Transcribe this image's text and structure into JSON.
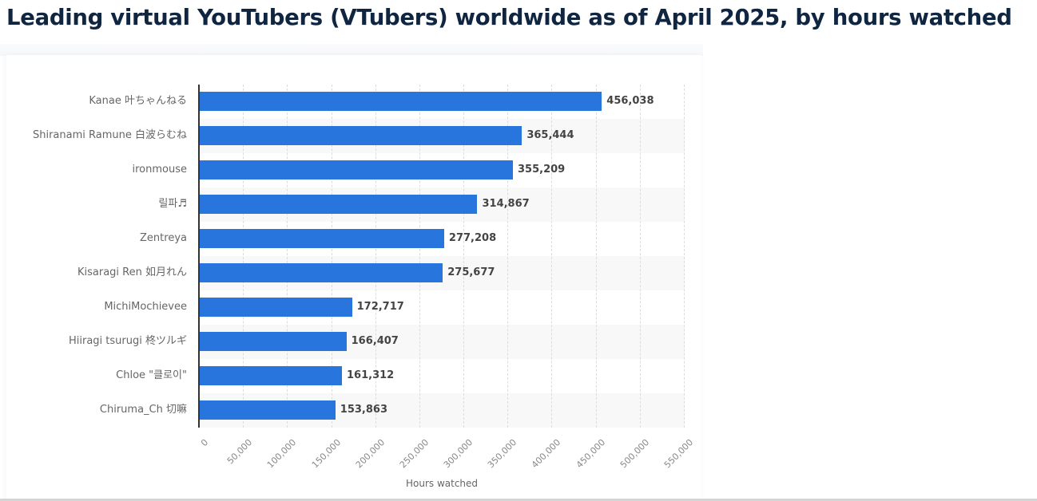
{
  "page": {
    "title": "Leading virtual YouTubers (VTubers) worldwide as of April 2025, by hours watched"
  },
  "chart_data": {
    "type": "bar",
    "orientation": "horizontal",
    "title": "Leading virtual YouTubers (VTubers) worldwide as of April 2025, by hours watched",
    "xlabel": "Hours watched",
    "ylabel": "",
    "categories": [
      "Kanae 叶ちゃんねる",
      "Shiranami Ramune 白波らむね",
      "ironmouse",
      "릴파♬",
      "Zentreya",
      "Kisaragi Ren 如月れん",
      "MichiMochievee",
      "Hiiragi tsurugi 柊ツルギ",
      "Chloe \"클로이\"",
      "Chiruma_Ch 切嘛"
    ],
    "values": [
      456038,
      365444,
      355209,
      314867,
      277208,
      275677,
      172717,
      166407,
      161312,
      153863
    ],
    "value_labels": [
      "456,038",
      "365,444",
      "355,209",
      "314,867",
      "277,208",
      "275,677",
      "172,717",
      "166,407",
      "161,312",
      "153,863"
    ],
    "xlim": [
      0,
      550000
    ],
    "xticks": [
      0,
      50000,
      100000,
      150000,
      200000,
      250000,
      300000,
      350000,
      400000,
      450000,
      500000,
      550000
    ],
    "xtick_labels": [
      "0",
      "50,000",
      "100,000",
      "150,000",
      "200,000",
      "250,000",
      "300,000",
      "350,000",
      "400,000",
      "450,000",
      "500,000",
      "550,000"
    ],
    "grid": true,
    "legend": "none",
    "bar_color": "#2876dd"
  }
}
